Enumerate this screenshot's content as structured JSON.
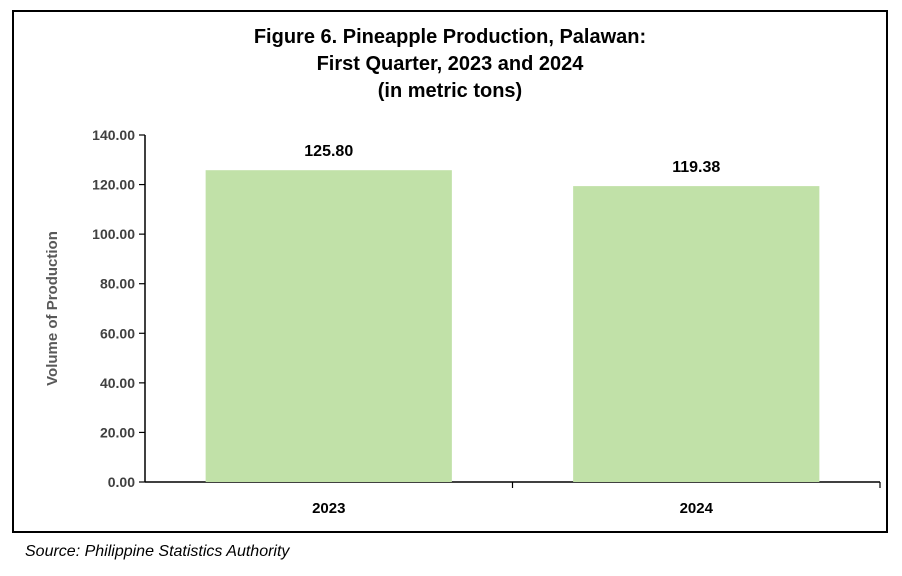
{
  "chart_data": {
    "type": "bar",
    "title_lines": [
      "Figure 6. Pineapple Production, Palawan:",
      "First Quarter, 2023 and 2024",
      "(in metric tons)"
    ],
    "categories": [
      "2023",
      "2024"
    ],
    "values": [
      125.8,
      119.38
    ],
    "data_labels": [
      "125.80",
      "119.38"
    ],
    "ylabel": "Volume of Production",
    "xlabel": "",
    "ylim": [
      0,
      140
    ],
    "y_ticks": [
      "0.00",
      "20.00",
      "40.00",
      "60.00",
      "80.00",
      "100.00",
      "120.00",
      "140.00"
    ],
    "grid": false,
    "legend": "none",
    "bar_color": "#c1e1a8"
  },
  "source": "Source: Philippine Statistics Authority"
}
